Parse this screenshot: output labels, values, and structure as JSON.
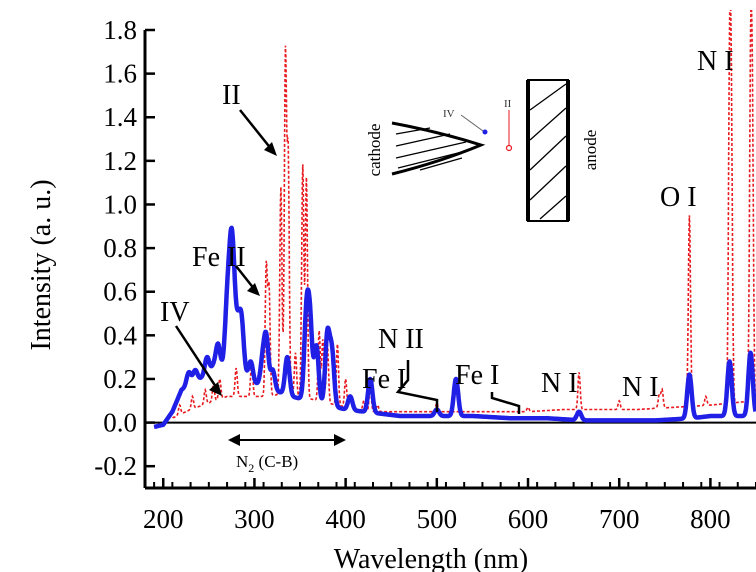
{
  "chart_data": {
    "type": "line",
    "xlabel": "Wavelength (nm)",
    "ylabel": "Intensity (a. u.)",
    "xlim": [
      180,
      850
    ],
    "ylim": [
      -0.3,
      1.8
    ],
    "x_ticks": [
      200,
      300,
      400,
      500,
      600,
      700,
      800
    ],
    "y_ticks": [
      -0.2,
      0.0,
      0.2,
      0.4,
      0.6,
      0.8,
      1.0,
      1.2,
      1.4,
      1.6,
      1.8
    ],
    "grid": false,
    "series": [
      {
        "color": "#e8191f",
        "style": "dashed",
        "baseline": [
          [
            190,
            -0.02
          ],
          [
            200,
            0.0
          ],
          [
            215,
            0.03
          ],
          [
            230,
            0.06
          ],
          [
            250,
            0.09
          ],
          [
            270,
            0.12
          ],
          [
            290,
            0.12
          ],
          [
            310,
            0.12
          ],
          [
            330,
            0.13
          ],
          [
            350,
            0.12
          ],
          [
            370,
            0.1
          ],
          [
            390,
            0.08
          ],
          [
            410,
            0.06
          ],
          [
            430,
            0.05
          ],
          [
            450,
            0.05
          ],
          [
            480,
            0.05
          ],
          [
            520,
            0.05
          ],
          [
            560,
            0.05
          ],
          [
            600,
            0.05
          ],
          [
            640,
            0.06
          ],
          [
            680,
            0.06
          ],
          [
            720,
            0.06
          ],
          [
            760,
            0.07
          ],
          [
            800,
            0.08
          ],
          [
            848,
            0.1
          ]
        ],
        "peaks": [
          [
            208,
            0.05
          ],
          [
            218,
            0.08
          ],
          [
            232,
            0.12
          ],
          [
            246,
            0.15
          ],
          [
            255,
            0.17
          ],
          [
            262,
            0.2
          ],
          [
            280,
            0.25
          ],
          [
            297,
            0.28
          ],
          [
            313,
            0.72
          ],
          [
            316,
            0.62
          ],
          [
            329,
            1.08
          ],
          [
            334,
            1.68
          ],
          [
            337,
            1.22
          ],
          [
            345,
            0.32
          ],
          [
            353,
            1.18
          ],
          [
            357,
            1.12
          ],
          [
            371,
            0.42
          ],
          [
            375,
            0.38
          ],
          [
            380,
            0.36
          ],
          [
            391,
            0.36
          ],
          [
            400,
            0.2
          ],
          [
            405,
            0.12
          ],
          [
            420,
            0.1
          ],
          [
            427,
            0.16
          ],
          [
            435,
            0.08
          ],
          [
            500,
            0.09
          ],
          [
            600,
            0.07
          ],
          [
            656,
            0.23
          ],
          [
            700,
            0.1
          ],
          [
            740,
            0.07
          ],
          [
            744,
            0.13
          ],
          [
            747,
            0.15
          ],
          [
            777,
            0.95
          ],
          [
            795,
            0.12
          ],
          [
            821,
            1.54
          ],
          [
            823,
            1.28
          ],
          [
            844,
            1.48
          ],
          [
            846,
            1.3
          ]
        ]
      },
      {
        "color": "#1f1fe6",
        "style": "solid",
        "baseline": [
          [
            190,
            -0.02
          ],
          [
            200,
            -0.01
          ],
          [
            210,
            0.05
          ],
          [
            220,
            0.15
          ],
          [
            240,
            0.2
          ],
          [
            260,
            0.25
          ],
          [
            280,
            0.25
          ],
          [
            300,
            0.18
          ],
          [
            320,
            0.15
          ],
          [
            340,
            0.12
          ],
          [
            360,
            0.1
          ],
          [
            380,
            0.08
          ],
          [
            400,
            0.06
          ],
          [
            420,
            0.05
          ],
          [
            440,
            0.04
          ],
          [
            460,
            0.03
          ],
          [
            480,
            0.03
          ],
          [
            500,
            0.03
          ],
          [
            540,
            0.03
          ],
          [
            580,
            0.02
          ],
          [
            620,
            0.02
          ],
          [
            660,
            0.01
          ],
          [
            700,
            0.01
          ],
          [
            740,
            0.01
          ],
          [
            780,
            0.02
          ],
          [
            800,
            0.03
          ],
          [
            848,
            0.03
          ]
        ],
        "peaks": [
          [
            228,
            0.23
          ],
          [
            235,
            0.24
          ],
          [
            248,
            0.3
          ],
          [
            255,
            0.26
          ],
          [
            260,
            0.36
          ],
          [
            270,
            0.52
          ],
          [
            274,
            0.66
          ],
          [
            277,
            0.58
          ],
          [
            282,
            0.42
          ],
          [
            286,
            0.45
          ],
          [
            296,
            0.28
          ],
          [
            309,
            0.28
          ],
          [
            313,
            0.38
          ],
          [
            320,
            0.24
          ],
          [
            336,
            0.3
          ],
          [
            357,
            0.48
          ],
          [
            361,
            0.44
          ],
          [
            368,
            0.35
          ],
          [
            380,
            0.4
          ],
          [
            385,
            0.32
          ],
          [
            405,
            0.12
          ],
          [
            427,
            0.2
          ],
          [
            500,
            0.06
          ],
          [
            521,
            0.2
          ],
          [
            656,
            0.05
          ],
          [
            777,
            0.22
          ],
          [
            821,
            0.28
          ],
          [
            844,
            0.32
          ]
        ]
      }
    ],
    "annotations": [
      "II",
      "Fe II",
      "IV",
      "Fe I",
      "N II",
      "Fe I",
      "N I",
      "N I",
      "O I",
      "N I",
      "N2 (C-B)"
    ]
  },
  "annotations": {
    "ii": "II",
    "fe_ii": "Fe II",
    "iv": "IV",
    "fe_i_left": "Fe I",
    "n_ii": "N II",
    "fe_i_right": "Fe I",
    "n_i_656": "N I",
    "n_i_744": "N I",
    "o_i": "O I",
    "n_i_top": "N I",
    "n2_main": "N",
    "n2_sub": "2",
    "n2_rest": " (C-B)"
  },
  "inset": {
    "cathode": "cathode",
    "anode": "anode",
    "iv": "IV",
    "ii": "II"
  },
  "colors": {
    "red_series": "#e8191f",
    "blue_series": "#1f1fe6",
    "axis": "#000000"
  }
}
